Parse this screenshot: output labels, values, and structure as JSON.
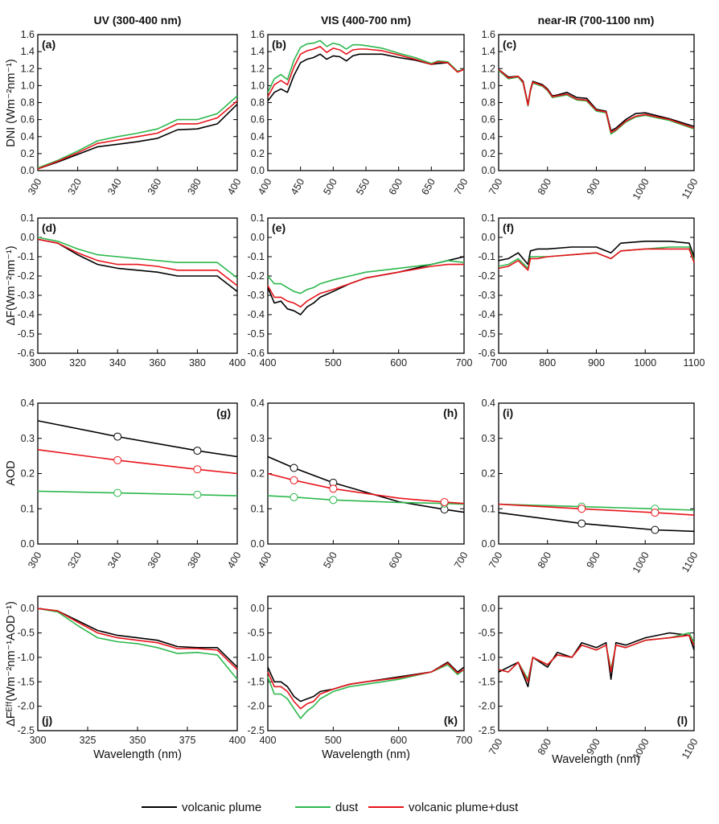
{
  "column_titles": [
    "UV (300-400 nm)",
    "VIS (400-700 nm)",
    "near-IR (700-1100 nm)"
  ],
  "row_ylabels": [
    "DNI (Wm⁻²nm⁻¹)",
    "ΔF(Wm⁻²nm⁻¹)",
    "AOD",
    "ΔFᴱᶠᶠ(Wm⁻²nm⁻¹AOD⁻¹)"
  ],
  "xlabel": "Wavelength (nm)",
  "legend": [
    {
      "name": "volcanic plume",
      "color": "#000000"
    },
    {
      "name": "dust",
      "color": "#2db84d"
    },
    {
      "name": "volcanic plume+dust",
      "color": "#e8141b"
    }
  ],
  "chart_data": [
    {
      "panel": "(a)",
      "type": "line",
      "xlim": [
        300,
        400
      ],
      "ylim": [
        0,
        1.6
      ],
      "xticks": [
        300,
        320,
        340,
        360,
        380,
        400
      ],
      "yticks": [
        "0.0",
        "0.2",
        "0.4",
        "0.6",
        "0.8",
        "1.0",
        "1.2",
        "1.4",
        "1.6"
      ],
      "x": [
        300,
        310,
        320,
        330,
        340,
        350,
        360,
        370,
        380,
        390,
        400
      ],
      "series": [
        {
          "name": "volcanic plume",
          "values": [
            0.02,
            0.1,
            0.19,
            0.28,
            0.31,
            0.34,
            0.38,
            0.48,
            0.49,
            0.55,
            0.78
          ]
        },
        {
          "name": "dust",
          "values": [
            0.03,
            0.12,
            0.23,
            0.35,
            0.4,
            0.44,
            0.49,
            0.6,
            0.6,
            0.67,
            0.88
          ]
        },
        {
          "name": "volcanic plume+dust",
          "values": [
            0.02,
            0.11,
            0.21,
            0.32,
            0.36,
            0.4,
            0.44,
            0.55,
            0.55,
            0.62,
            0.82
          ]
        }
      ]
    },
    {
      "panel": "(b)",
      "type": "line",
      "xlim": [
        400,
        700
      ],
      "ylim": [
        0,
        1.6
      ],
      "xticks": [
        400,
        450,
        500,
        550,
        600,
        650,
        700
      ],
      "yticks": [
        "0.0",
        "0.2",
        "0.4",
        "0.6",
        "0.8",
        "1.0",
        "1.2",
        "1.4",
        "1.6"
      ],
      "x": [
        400,
        410,
        420,
        430,
        440,
        450,
        460,
        470,
        480,
        490,
        500,
        510,
        520,
        530,
        540,
        550,
        575,
        600,
        625,
        650,
        660,
        675,
        690,
        700
      ],
      "series": [
        {
          "name": "volcanic plume",
          "values": [
            0.82,
            0.92,
            0.96,
            0.92,
            1.12,
            1.27,
            1.31,
            1.33,
            1.37,
            1.31,
            1.35,
            1.34,
            1.29,
            1.35,
            1.37,
            1.37,
            1.37,
            1.33,
            1.3,
            1.25,
            1.26,
            1.27,
            1.16,
            1.19
          ]
        },
        {
          "name": "dust",
          "values": [
            0.92,
            1.08,
            1.13,
            1.07,
            1.3,
            1.45,
            1.49,
            1.5,
            1.53,
            1.46,
            1.5,
            1.48,
            1.43,
            1.48,
            1.48,
            1.47,
            1.44,
            1.38,
            1.33,
            1.26,
            1.29,
            1.28,
            1.17,
            1.19
          ]
        },
        {
          "name": "volcanic plume+dust",
          "values": [
            0.87,
            1.01,
            1.06,
            1.01,
            1.22,
            1.37,
            1.41,
            1.43,
            1.46,
            1.39,
            1.44,
            1.42,
            1.37,
            1.42,
            1.43,
            1.43,
            1.41,
            1.36,
            1.31,
            1.25,
            1.28,
            1.27,
            1.16,
            1.19
          ]
        }
      ]
    },
    {
      "panel": "(c)",
      "type": "line",
      "xlim": [
        700,
        1100
      ],
      "ylim": [
        0,
        1.6
      ],
      "xticks": [
        700,
        800,
        900,
        1000,
        1100
      ],
      "yticks": [
        "0.0",
        "0.2",
        "0.4",
        "0.6",
        "0.8",
        "1.0",
        "1.2",
        "1.4",
        "1.6"
      ],
      "x": [
        700,
        720,
        740,
        750,
        760,
        765,
        770,
        790,
        800,
        810,
        820,
        840,
        860,
        880,
        900,
        920,
        930,
        940,
        960,
        980,
        1000,
        1050,
        1100
      ],
      "series": [
        {
          "name": "volcanic plume",
          "values": [
            1.19,
            1.1,
            1.11,
            1.05,
            0.78,
            0.95,
            1.05,
            1.01,
            0.96,
            0.88,
            0.89,
            0.92,
            0.86,
            0.85,
            0.72,
            0.7,
            0.47,
            0.5,
            0.6,
            0.67,
            0.68,
            0.61,
            0.52
          ]
        },
        {
          "name": "dust",
          "values": [
            1.18,
            1.08,
            1.1,
            1.03,
            0.76,
            0.93,
            1.03,
            0.99,
            0.94,
            0.86,
            0.87,
            0.89,
            0.83,
            0.82,
            0.7,
            0.68,
            0.43,
            0.47,
            0.57,
            0.63,
            0.65,
            0.59,
            0.49
          ]
        },
        {
          "name": "volcanic plume+dust",
          "values": [
            1.19,
            1.09,
            1.11,
            1.04,
            0.77,
            0.94,
            1.04,
            1.0,
            0.95,
            0.87,
            0.88,
            0.9,
            0.84,
            0.83,
            0.71,
            0.69,
            0.45,
            0.48,
            0.58,
            0.64,
            0.66,
            0.6,
            0.5
          ]
        }
      ]
    },
    {
      "panel": "(d)",
      "type": "line",
      "xlim": [
        300,
        400
      ],
      "ylim": [
        -0.6,
        0.1
      ],
      "xticks": [
        300,
        320,
        340,
        360,
        380,
        400
      ],
      "yticks": [
        "-0.6",
        "-0.5",
        "-0.4",
        "-0.3",
        "-0.2",
        "-0.1",
        "0.0",
        "0.1"
      ],
      "x": [
        300,
        310,
        320,
        330,
        340,
        350,
        360,
        370,
        380,
        390,
        400
      ],
      "series": [
        {
          "name": "volcanic plume",
          "values": [
            -0.01,
            -0.03,
            -0.09,
            -0.14,
            -0.16,
            -0.17,
            -0.18,
            -0.2,
            -0.2,
            -0.2,
            -0.28
          ]
        },
        {
          "name": "dust",
          "values": [
            0.0,
            -0.02,
            -0.06,
            -0.09,
            -0.1,
            -0.11,
            -0.12,
            -0.13,
            -0.13,
            -0.13,
            -0.21
          ]
        },
        {
          "name": "volcanic plume+dust",
          "values": [
            -0.01,
            -0.03,
            -0.08,
            -0.12,
            -0.14,
            -0.14,
            -0.15,
            -0.17,
            -0.17,
            -0.17,
            -0.25
          ]
        }
      ]
    },
    {
      "panel": "(e)",
      "type": "line",
      "xlim": [
        400,
        700
      ],
      "ylim": [
        -0.6,
        0.1
      ],
      "xticks": [
        400,
        500,
        600,
        700
      ],
      "yticks": [
        "-0.6",
        "-0.5",
        "-0.4",
        "-0.3",
        "-0.2",
        "-0.1",
        "0.0",
        "0.1"
      ],
      "x": [
        400,
        410,
        420,
        430,
        440,
        450,
        460,
        470,
        480,
        500,
        525,
        550,
        600,
        650,
        675,
        700
      ],
      "series": [
        {
          "name": "volcanic plume",
          "values": [
            -0.26,
            -0.34,
            -0.33,
            -0.37,
            -0.38,
            -0.4,
            -0.36,
            -0.34,
            -0.31,
            -0.28,
            -0.24,
            -0.21,
            -0.18,
            -0.14,
            -0.12,
            -0.1
          ]
        },
        {
          "name": "dust",
          "values": [
            -0.2,
            -0.24,
            -0.24,
            -0.26,
            -0.28,
            -0.29,
            -0.27,
            -0.26,
            -0.24,
            -0.22,
            -0.2,
            -0.18,
            -0.16,
            -0.14,
            -0.12,
            -0.13
          ]
        },
        {
          "name": "volcanic plume+dust",
          "values": [
            -0.25,
            -0.31,
            -0.31,
            -0.33,
            -0.34,
            -0.36,
            -0.33,
            -0.31,
            -0.29,
            -0.27,
            -0.24,
            -0.21,
            -0.18,
            -0.15,
            -0.14,
            -0.14
          ]
        }
      ]
    },
    {
      "panel": "(f)",
      "type": "line",
      "xlim": [
        700,
        1100
      ],
      "ylim": [
        -0.6,
        0.1
      ],
      "xticks": [
        700,
        800,
        900,
        1000,
        1100
      ],
      "yticks": [
        "-0.6",
        "-0.5",
        "-0.4",
        "-0.3",
        "-0.2",
        "-0.1",
        "0.0",
        "0.1"
      ],
      "x": [
        700,
        720,
        740,
        760,
        765,
        780,
        800,
        850,
        900,
        930,
        950,
        1000,
        1050,
        1090,
        1100
      ],
      "series": [
        {
          "name": "volcanic plume",
          "values": [
            -0.12,
            -0.11,
            -0.08,
            -0.14,
            -0.07,
            -0.06,
            -0.06,
            -0.05,
            -0.05,
            -0.08,
            -0.03,
            -0.02,
            -0.02,
            -0.03,
            -0.1
          ]
        },
        {
          "name": "dust",
          "values": [
            -0.15,
            -0.14,
            -0.11,
            -0.16,
            -0.1,
            -0.1,
            -0.1,
            -0.09,
            -0.08,
            -0.11,
            -0.07,
            -0.06,
            -0.05,
            -0.05,
            -0.12
          ]
        },
        {
          "name": "volcanic plume+dust",
          "values": [
            -0.16,
            -0.15,
            -0.12,
            -0.17,
            -0.11,
            -0.11,
            -0.1,
            -0.09,
            -0.08,
            -0.11,
            -0.07,
            -0.06,
            -0.06,
            -0.06,
            -0.13
          ]
        }
      ]
    },
    {
      "panel": "(g)",
      "type": "line",
      "xlim": [
        300,
        400
      ],
      "ylim": [
        0,
        0.4
      ],
      "xticks": [
        300,
        320,
        340,
        360,
        380,
        400
      ],
      "yticks": [
        "0.0",
        "0.1",
        "0.2",
        "0.3",
        "0.4"
      ],
      "x": [
        300,
        340,
        380,
        400
      ],
      "markers_x": [
        340,
        380
      ],
      "series": [
        {
          "name": "volcanic plume",
          "values": [
            0.35,
            0.305,
            0.265,
            0.248
          ]
        },
        {
          "name": "dust",
          "values": [
            0.15,
            0.145,
            0.14,
            0.137
          ]
        },
        {
          "name": "volcanic plume+dust",
          "values": [
            0.268,
            0.238,
            0.212,
            0.2
          ]
        }
      ]
    },
    {
      "panel": "(h)",
      "type": "line",
      "xlim": [
        400,
        700
      ],
      "ylim": [
        0,
        0.4
      ],
      "xticks": [
        400,
        500,
        600,
        700
      ],
      "yticks": [
        "0.0",
        "0.1",
        "0.2",
        "0.3",
        "0.4"
      ],
      "x": [
        400,
        440,
        500,
        600,
        670,
        700
      ],
      "markers_x": [
        440,
        500,
        670
      ],
      "series": [
        {
          "name": "volcanic plume",
          "values": [
            0.248,
            0.216,
            0.174,
            0.12,
            0.098,
            0.09
          ]
        },
        {
          "name": "dust",
          "values": [
            0.137,
            0.133,
            0.125,
            0.118,
            0.115,
            0.113
          ]
        },
        {
          "name": "volcanic plume+dust",
          "values": [
            0.2,
            0.181,
            0.157,
            0.13,
            0.119,
            0.115
          ]
        }
      ]
    },
    {
      "panel": "(i)",
      "type": "line",
      "xlim": [
        700,
        1100
      ],
      "ylim": [
        0,
        0.4
      ],
      "xticks": [
        700,
        800,
        900,
        1000,
        1100
      ],
      "yticks": [
        "0.0",
        "0.1",
        "0.2",
        "0.3",
        "0.4"
      ],
      "x": [
        700,
        870,
        1020,
        1100
      ],
      "markers_x": [
        870,
        1020
      ],
      "series": [
        {
          "name": "volcanic plume",
          "values": [
            0.089,
            0.058,
            0.04,
            0.036
          ]
        },
        {
          "name": "dust",
          "values": [
            0.113,
            0.106,
            0.1,
            0.096
          ]
        },
        {
          "name": "volcanic plume+dust",
          "values": [
            0.113,
            0.1,
            0.089,
            0.082
          ]
        }
      ]
    },
    {
      "panel": "(j)",
      "type": "line",
      "xlim": [
        300,
        400
      ],
      "ylim": [
        -2.5,
        0.25
      ],
      "xticks": [
        300,
        325,
        350,
        375,
        400
      ],
      "yticks": [
        "-2.5",
        "-2.0",
        "-1.5",
        "-1.0",
        "-0.5",
        "0.0"
      ],
      "x": [
        300,
        310,
        320,
        330,
        340,
        350,
        360,
        370,
        380,
        390,
        400
      ],
      "series": [
        {
          "name": "volcanic plume",
          "values": [
            0,
            -0.05,
            -0.25,
            -0.45,
            -0.55,
            -0.6,
            -0.65,
            -0.78,
            -0.8,
            -0.8,
            -1.2
          ]
        },
        {
          "name": "dust",
          "values": [
            0,
            -0.07,
            -0.35,
            -0.6,
            -0.68,
            -0.72,
            -0.8,
            -0.92,
            -0.9,
            -0.95,
            -1.45
          ]
        },
        {
          "name": "volcanic plume+dust",
          "values": [
            0,
            -0.05,
            -0.28,
            -0.5,
            -0.6,
            -0.65,
            -0.7,
            -0.82,
            -0.82,
            -0.85,
            -1.25
          ]
        }
      ]
    },
    {
      "panel": "(k)",
      "type": "line",
      "xlim": [
        400,
        700
      ],
      "ylim": [
        -2.5,
        0.25
      ],
      "xticks": [
        400,
        500,
        600,
        700
      ],
      "yticks": [
        "-2.5",
        "-2.0",
        "-1.5",
        "-1.0",
        "-0.5",
        "0.0"
      ],
      "x": [
        400,
        410,
        420,
        430,
        440,
        450,
        460,
        470,
        480,
        500,
        525,
        550,
        600,
        650,
        675,
        690,
        700
      ],
      "series": [
        {
          "name": "volcanic plume",
          "values": [
            -1.2,
            -1.5,
            -1.5,
            -1.6,
            -1.8,
            -1.9,
            -1.85,
            -1.8,
            -1.7,
            -1.65,
            -1.55,
            -1.5,
            -1.4,
            -1.3,
            -1.1,
            -1.3,
            -1.2
          ]
        },
        {
          "name": "dust",
          "values": [
            -1.4,
            -1.75,
            -1.75,
            -1.85,
            -2.05,
            -2.25,
            -2.1,
            -2.0,
            -1.85,
            -1.7,
            -1.6,
            -1.55,
            -1.45,
            -1.3,
            -1.15,
            -1.35,
            -1.25
          ]
        },
        {
          "name": "volcanic plume+dust",
          "values": [
            -1.3,
            -1.6,
            -1.6,
            -1.7,
            -1.9,
            -2.05,
            -1.95,
            -1.9,
            -1.75,
            -1.65,
            -1.55,
            -1.5,
            -1.42,
            -1.3,
            -1.12,
            -1.32,
            -1.25
          ]
        }
      ]
    },
    {
      "panel": "(l)",
      "type": "line",
      "xlim": [
        700,
        1100
      ],
      "ylim": [
        -2.5,
        0.25
      ],
      "xticks": [
        700,
        800,
        900,
        1000,
        1100
      ],
      "yticks": [
        "-2.5",
        "-2.0",
        "-1.5",
        "-1.0",
        "-0.5",
        "0.0"
      ],
      "x": [
        700,
        720,
        740,
        760,
        770,
        800,
        820,
        850,
        870,
        900,
        920,
        930,
        940,
        960,
        1000,
        1050,
        1090,
        1100
      ],
      "series": [
        {
          "name": "volcanic plume",
          "values": [
            -1.3,
            -1.2,
            -1.1,
            -1.6,
            -1.0,
            -1.2,
            -0.9,
            -1.0,
            -0.7,
            -0.8,
            -0.7,
            -1.45,
            -0.7,
            -0.75,
            -0.6,
            -0.5,
            -0.55,
            -0.85
          ]
        },
        {
          "name": "dust",
          "values": [
            -1.25,
            -1.3,
            -1.1,
            -1.45,
            -1.0,
            -1.15,
            -0.95,
            -1.0,
            -0.75,
            -0.85,
            -0.75,
            -1.25,
            -0.75,
            -0.8,
            -0.65,
            -0.6,
            -0.5,
            -0.7
          ]
        },
        {
          "name": "volcanic plume+dust",
          "values": [
            -1.25,
            -1.3,
            -1.1,
            -1.5,
            -1.0,
            -1.15,
            -0.95,
            -1.0,
            -0.75,
            -0.85,
            -0.75,
            -1.3,
            -0.75,
            -0.8,
            -0.65,
            -0.6,
            -0.55,
            -0.75
          ]
        }
      ]
    }
  ]
}
